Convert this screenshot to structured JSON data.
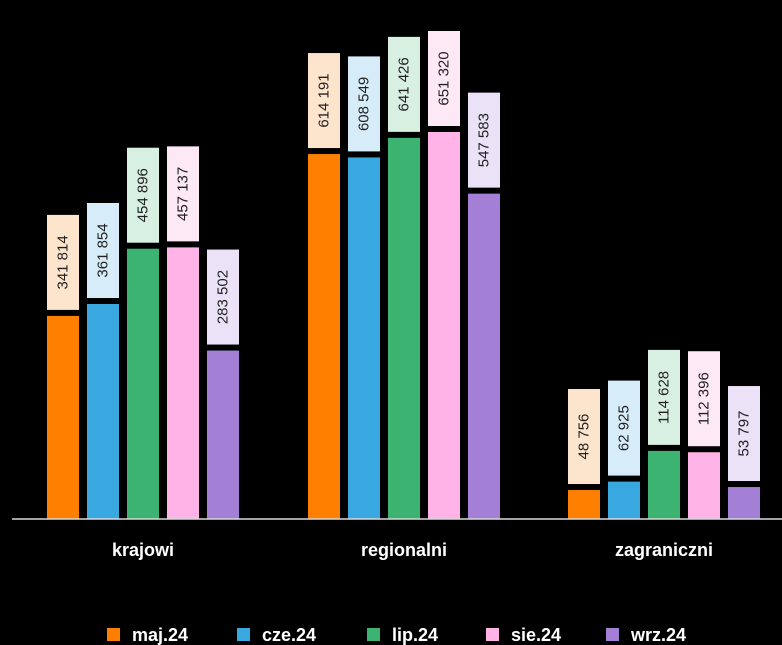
{
  "chart_data": {
    "type": "bar",
    "categories": [
      "krajowi",
      "regionalni",
      "zagraniczni"
    ],
    "series": [
      {
        "name": "maj.24",
        "color": "#ff7f00",
        "label_bg": "#fde4cc",
        "values": [
          341814,
          614191,
          48756
        ],
        "labels": [
          "341 814",
          "614 191",
          "48 756"
        ]
      },
      {
        "name": "cze.24",
        "color": "#3aa8e0",
        "label_bg": "#d6ecf8",
        "values": [
          361854,
          608549,
          62925
        ],
        "labels": [
          "361 854",
          "608 549",
          "62 925"
        ]
      },
      {
        "name": "lip.24",
        "color": "#3cb371",
        "label_bg": "#d8f0e2",
        "values": [
          454896,
          641426,
          114628
        ],
        "labels": [
          "454 896",
          "641 426",
          "114 628"
        ]
      },
      {
        "name": "sie.24",
        "color": "#ffb3e6",
        "label_bg": "#fde8f6",
        "values": [
          457137,
          651320,
          112396
        ],
        "labels": [
          "457 137",
          "651 320",
          "112 396"
        ]
      },
      {
        "name": "wrz.24",
        "color": "#a37fd6",
        "label_bg": "#ebe2f7",
        "values": [
          283502,
          547583,
          53797
        ],
        "labels": [
          "283 502",
          "547 583",
          "53 797"
        ]
      }
    ],
    "ylim": [
      0,
      760000
    ],
    "grid": false,
    "legend_position": "bottom"
  }
}
